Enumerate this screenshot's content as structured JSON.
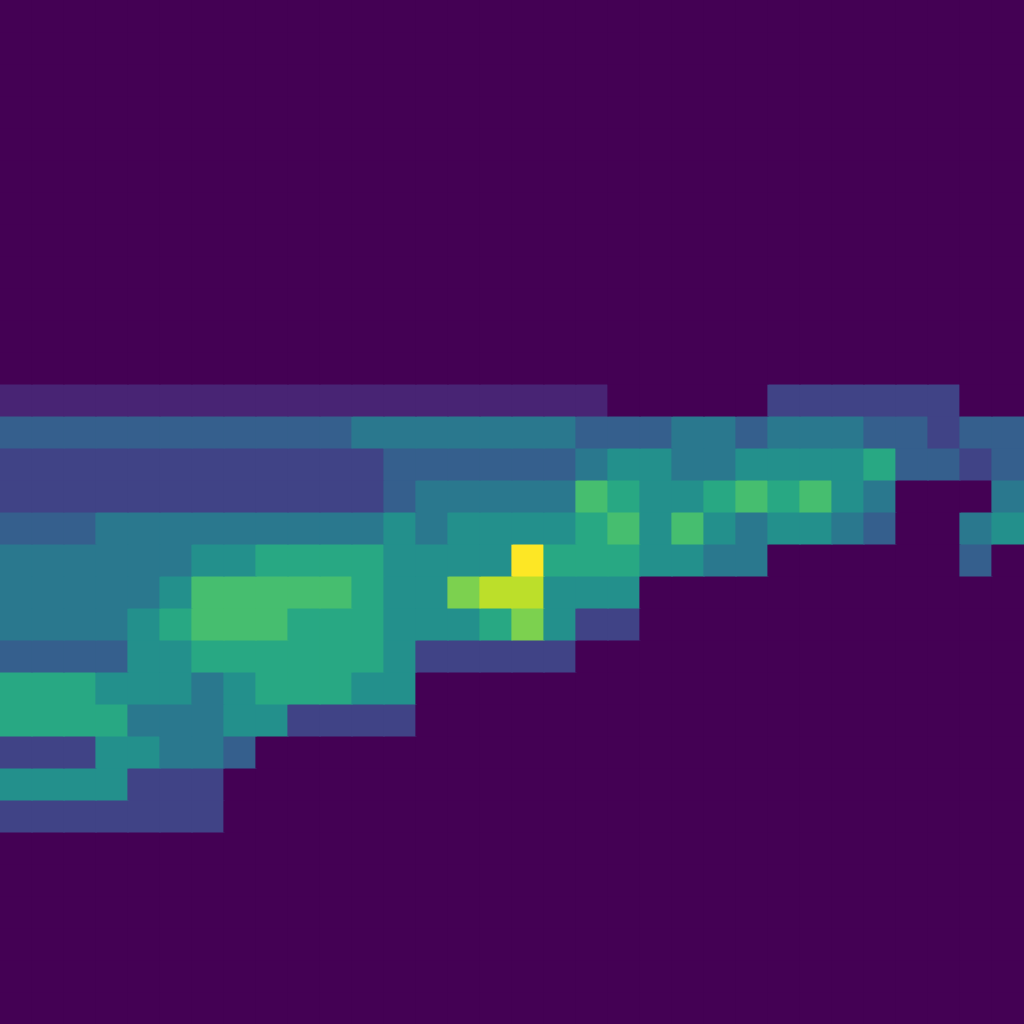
{
  "chart_data": {
    "type": "heatmap",
    "tick_labels": false,
    "color_range": [
      0,
      10
    ],
    "cells": [
      [
        0,
        0,
        0,
        0,
        0,
        0,
        0,
        0,
        0,
        0,
        0,
        0,
        0,
        0,
        0,
        0,
        0,
        0,
        0,
        0,
        0,
        0,
        0,
        0,
        0,
        0,
        0,
        0,
        0,
        0,
        0,
        0
      ],
      [
        0,
        0,
        0,
        0,
        0,
        0,
        0,
        0,
        0,
        0,
        0,
        0,
        0,
        0,
        0,
        0,
        0,
        0,
        0,
        0,
        0,
        0,
        0,
        0,
        0,
        0,
        0,
        0,
        0,
        0,
        0,
        0
      ],
      [
        0,
        0,
        0,
        0,
        0,
        0,
        0,
        0,
        0,
        0,
        0,
        0,
        0,
        0,
        0,
        0,
        0,
        0,
        0,
        0,
        0,
        0,
        0,
        0,
        0,
        0,
        0,
        0,
        0,
        0,
        0,
        0
      ],
      [
        0,
        0,
        0,
        0,
        0,
        0,
        0,
        0,
        0,
        0,
        0,
        0,
        0,
        0,
        0,
        0,
        0,
        0,
        0,
        0,
        0,
        0,
        0,
        0,
        0,
        0,
        0,
        0,
        0,
        0,
        0,
        0
      ],
      [
        0,
        0,
        0,
        0,
        0,
        0,
        0,
        0,
        0,
        0,
        0,
        0,
        0,
        0,
        0,
        0,
        0,
        0,
        0,
        0,
        0,
        0,
        0,
        0,
        0,
        0,
        0,
        0,
        0,
        0,
        0,
        0
      ],
      [
        0,
        0,
        0,
        0,
        0,
        0,
        0,
        0,
        0,
        0,
        0,
        0,
        0,
        0,
        0,
        0,
        0,
        0,
        0,
        0,
        0,
        0,
        0,
        0,
        0,
        0,
        0,
        0,
        0,
        0,
        0,
        0
      ],
      [
        0,
        0,
        0,
        0,
        0,
        0,
        0,
        0,
        0,
        0,
        0,
        0,
        0,
        0,
        0,
        0,
        0,
        0,
        0,
        0,
        0,
        0,
        0,
        0,
        0,
        0,
        0,
        0,
        0,
        0,
        0,
        0
      ],
      [
        0,
        0,
        0,
        0,
        0,
        0,
        0,
        0,
        0,
        0,
        0,
        0,
        0,
        0,
        0,
        0,
        0,
        0,
        0,
        0,
        0,
        0,
        0,
        0,
        0,
        0,
        0,
        0,
        0,
        0,
        0,
        0
      ],
      [
        0,
        0,
        0,
        0,
        0,
        0,
        0,
        0,
        0,
        0,
        0,
        0,
        0,
        0,
        0,
        0,
        0,
        0,
        0,
        0,
        0,
        0,
        0,
        0,
        0,
        0,
        0,
        0,
        0,
        0,
        0,
        0
      ],
      [
        0,
        0,
        0,
        0,
        0,
        0,
        0,
        0,
        0,
        0,
        0,
        0,
        0,
        0,
        0,
        0,
        0,
        0,
        0,
        0,
        0,
        0,
        0,
        0,
        0,
        0,
        0,
        0,
        0,
        0,
        0,
        0
      ],
      [
        0,
        0,
        0,
        0,
        0,
        0,
        0,
        0,
        0,
        0,
        0,
        0,
        0,
        0,
        0,
        0,
        0,
        0,
        0,
        0,
        0,
        0,
        0,
        0,
        0,
        0,
        0,
        0,
        0,
        0,
        0,
        0
      ],
      [
        0,
        0,
        0,
        0,
        0,
        0,
        0,
        0,
        0,
        0,
        0,
        0,
        0,
        0,
        0,
        0,
        0,
        0,
        0,
        0,
        0,
        0,
        0,
        0,
        0,
        0,
        0,
        0,
        0,
        0,
        0,
        0
      ],
      [
        1,
        1,
        1,
        1,
        1,
        1,
        1,
        1,
        1,
        1,
        1,
        1,
        1,
        1,
        1,
        1,
        1,
        1,
        1,
        0,
        0,
        0,
        0,
        0,
        2,
        2,
        2,
        2,
        2,
        2,
        0,
        0
      ],
      [
        3,
        3,
        3,
        3,
        3,
        3,
        3,
        3,
        3,
        3,
        3,
        4,
        4,
        4,
        4,
        4,
        4,
        4,
        3,
        3,
        3,
        4,
        4,
        3,
        4,
        4,
        4,
        3,
        3,
        2,
        3,
        3
      ],
      [
        2,
        2,
        2,
        2,
        2,
        2,
        2,
        2,
        2,
        2,
        2,
        2,
        3,
        3,
        3,
        3,
        3,
        3,
        4,
        5,
        5,
        4,
        4,
        5,
        5,
        5,
        5,
        6,
        3,
        3,
        2,
        3
      ],
      [
        2,
        2,
        2,
        2,
        2,
        2,
        2,
        2,
        2,
        2,
        2,
        2,
        3,
        4,
        4,
        4,
        4,
        4,
        7,
        6,
        5,
        5,
        6,
        7,
        6,
        7,
        5,
        4,
        0,
        0,
        0,
        4
      ],
      [
        3,
        3,
        3,
        4,
        4,
        4,
        4,
        4,
        4,
        4,
        4,
        4,
        5,
        4,
        5,
        5,
        5,
        5,
        6,
        7,
        5,
        7,
        5,
        4,
        5,
        5,
        4,
        3,
        0,
        0,
        4,
        5
      ],
      [
        4,
        4,
        4,
        4,
        4,
        4,
        5,
        5,
        6,
        6,
        6,
        6,
        5,
        5,
        5,
        5,
        10,
        6,
        6,
        6,
        5,
        5,
        4,
        4,
        0,
        0,
        0,
        0,
        0,
        0,
        3,
        0
      ],
      [
        4,
        4,
        4,
        4,
        4,
        5,
        7,
        7,
        7,
        7,
        7,
        6,
        5,
        5,
        8,
        9,
        9,
        5,
        5,
        5,
        0,
        0,
        0,
        0,
        0,
        0,
        0,
        0,
        0,
        0,
        0,
        0
      ],
      [
        4,
        4,
        4,
        4,
        5,
        6,
        7,
        7,
        7,
        6,
        6,
        6,
        5,
        5,
        5,
        6,
        8,
        5,
        2,
        2,
        0,
        0,
        0,
        0,
        0,
        0,
        0,
        0,
        0,
        0,
        0,
        0
      ],
      [
        3,
        3,
        3,
        3,
        5,
        5,
        6,
        6,
        6,
        6,
        6,
        6,
        5,
        2,
        2,
        2,
        2,
        2,
        0,
        0,
        0,
        0,
        0,
        0,
        0,
        0,
        0,
        0,
        0,
        0,
        0,
        0
      ],
      [
        6,
        6,
        6,
        5,
        5,
        5,
        4,
        5,
        6,
        6,
        6,
        5,
        5,
        0,
        0,
        0,
        0,
        0,
        0,
        0,
        0,
        0,
        0,
        0,
        0,
        0,
        0,
        0,
        0,
        0,
        0,
        0
      ],
      [
        6,
        6,
        6,
        6,
        4,
        4,
        4,
        5,
        5,
        2,
        2,
        2,
        2,
        0,
        0,
        0,
        0,
        0,
        0,
        0,
        0,
        0,
        0,
        0,
        0,
        0,
        0,
        0,
        0,
        0,
        0,
        0
      ],
      [
        2,
        2,
        2,
        5,
        5,
        4,
        4,
        3,
        0,
        0,
        0,
        0,
        0,
        0,
        0,
        0,
        0,
        0,
        0,
        0,
        0,
        0,
        0,
        0,
        0,
        0,
        0,
        0,
        0,
        0,
        0,
        0
      ],
      [
        5,
        5,
        5,
        5,
        2,
        2,
        2,
        0,
        0,
        0,
        0,
        0,
        0,
        0,
        0,
        0,
        0,
        0,
        0,
        0,
        0,
        0,
        0,
        0,
        0,
        0,
        0,
        0,
        0,
        0,
        0,
        0
      ],
      [
        2,
        2,
        2,
        2,
        2,
        2,
        2,
        0,
        0,
        0,
        0,
        0,
        0,
        0,
        0,
        0,
        0,
        0,
        0,
        0,
        0,
        0,
        0,
        0,
        0,
        0,
        0,
        0,
        0,
        0,
        0,
        0
      ],
      [
        0,
        0,
        0,
        0,
        0,
        0,
        0,
        0,
        0,
        0,
        0,
        0,
        0,
        0,
        0,
        0,
        0,
        0,
        0,
        0,
        0,
        0,
        0,
        0,
        0,
        0,
        0,
        0,
        0,
        0,
        0,
        0
      ],
      [
        0,
        0,
        0,
        0,
        0,
        0,
        0,
        0,
        0,
        0,
        0,
        0,
        0,
        0,
        0,
        0,
        0,
        0,
        0,
        0,
        0,
        0,
        0,
        0,
        0,
        0,
        0,
        0,
        0,
        0,
        0,
        0
      ],
      [
        0,
        0,
        0,
        0,
        0,
        0,
        0,
        0,
        0,
        0,
        0,
        0,
        0,
        0,
        0,
        0,
        0,
        0,
        0,
        0,
        0,
        0,
        0,
        0,
        0,
        0,
        0,
        0,
        0,
        0,
        0,
        0
      ],
      [
        0,
        0,
        0,
        0,
        0,
        0,
        0,
        0,
        0,
        0,
        0,
        0,
        0,
        0,
        0,
        0,
        0,
        0,
        0,
        0,
        0,
        0,
        0,
        0,
        0,
        0,
        0,
        0,
        0,
        0,
        0,
        0
      ],
      [
        0,
        0,
        0,
        0,
        0,
        0,
        0,
        0,
        0,
        0,
        0,
        0,
        0,
        0,
        0,
        0,
        0,
        0,
        0,
        0,
        0,
        0,
        0,
        0,
        0,
        0,
        0,
        0,
        0,
        0,
        0,
        0
      ],
      [
        0,
        0,
        0,
        0,
        0,
        0,
        0,
        0,
        0,
        0,
        0,
        0,
        0,
        0,
        0,
        0,
        0,
        0,
        0,
        0,
        0,
        0,
        0,
        0,
        0,
        0,
        0,
        0,
        0,
        0,
        0,
        0
      ]
    ]
  }
}
